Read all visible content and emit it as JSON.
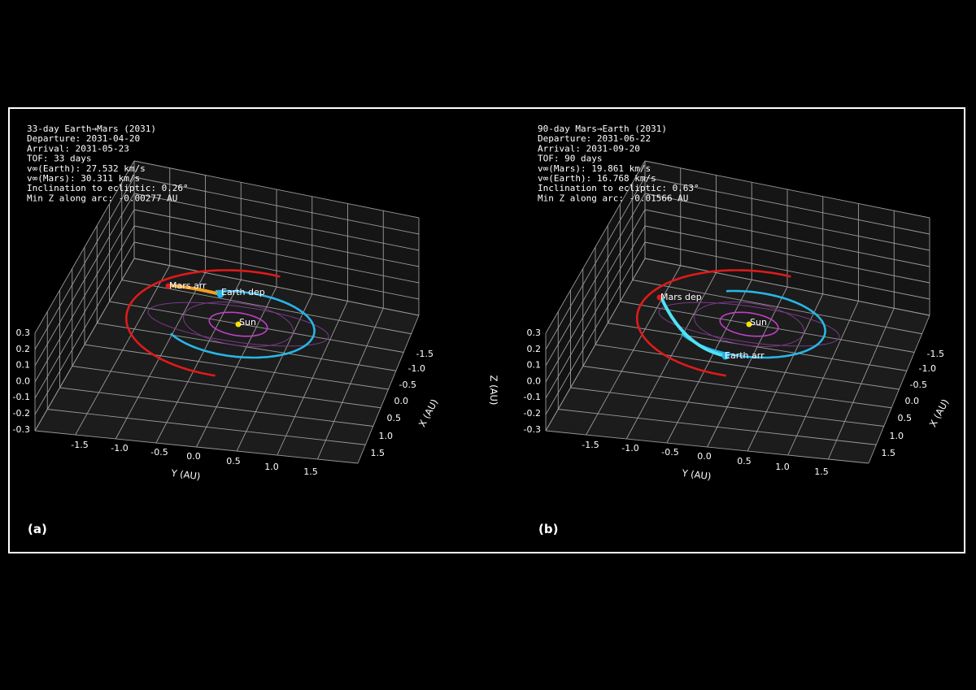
{
  "colors": {
    "background": "#000000",
    "grid": "#9a9a9a",
    "floor": "#1c1c1c",
    "earth_orbit": "#29b6e6",
    "mars_orbit": "#e01a1a",
    "inner_orbit": "#c23fc8",
    "faint_orbit": "#7a3a86",
    "transfer_out": "#f0a020",
    "transfer_back": "#4fe3f5",
    "sun": "#f5e20a",
    "frame": "#ffffff"
  },
  "chart_data": [
    {
      "type": "3d-line",
      "panel_label": "(a)",
      "info_lines": [
        "33-day Earth→Mars (2031)",
        "Departure: 2031-04-20",
        "Arrival:   2031-05-23",
        "TOF: 33 days",
        "v∞(Earth):  27.532 km/s",
        "v∞(Mars):  30.311 km/s",
        "Inclination to ecliptic:  0.26°",
        "Min Z along arc: -0.00277 AU"
      ],
      "xlabel": "X (AU)",
      "ylabel": "Y (AU)",
      "zlabel": "Z (AU)",
      "x_ticks": [
        "-1.5",
        "-1.0",
        "-0.5",
        "0.0",
        "0.5",
        "1.0",
        "1.5"
      ],
      "y_ticks": [
        "-1.5",
        "-1.0",
        "-0.5",
        "0.0",
        "0.5",
        "1.0",
        "1.5"
      ],
      "z_ticks": [
        "0.3",
        "0.2",
        "0.1",
        "0.0",
        "-0.1",
        "-0.2",
        "-0.3"
      ],
      "xlim": [
        -1.8,
        1.8
      ],
      "ylim": [
        -1.8,
        1.8
      ],
      "zlim": [
        -0.3,
        0.3
      ],
      "grid": true,
      "series": [
        {
          "name": "Earth dep",
          "kind": "marker",
          "x": 0.0,
          "y": -1.0,
          "z": 0.0
        },
        {
          "name": "Mars arr",
          "kind": "marker",
          "x": -0.55,
          "y": -1.45,
          "z": 0.0
        },
        {
          "name": "Sun",
          "kind": "marker",
          "x": 0.0,
          "y": 0.0,
          "z": 0.0
        }
      ]
    },
    {
      "type": "3d-line",
      "panel_label": "(b)",
      "info_lines": [
        "90-day Mars→Earth (2031)",
        "Departure: 2031-06-22",
        "Arrival:   2031-09-20",
        "TOF: 90 days",
        "v∞(Mars):  19.861 km/s",
        "v∞(Earth):  16.768 km/s",
        "Inclination to ecliptic:  0.63°",
        "Min Z along arc: -0.01566 AU"
      ],
      "xlabel": "X (AU)",
      "ylabel": "Y (AU)",
      "zlabel": "Z (AU)",
      "x_ticks": [
        "-1.5",
        "-1.0",
        "-0.5",
        "0.0",
        "0.5",
        "1.0",
        "1.5"
      ],
      "y_ticks": [
        "-1.5",
        "-1.0",
        "-0.5",
        "0.0",
        "0.5",
        "1.0",
        "1.5"
      ],
      "z_ticks": [
        "0.3",
        "0.2",
        "0.1",
        "0.0",
        "-0.1",
        "-0.2",
        "-0.3"
      ],
      "xlim": [
        -1.8,
        1.8
      ],
      "ylim": [
        -1.8,
        1.8
      ],
      "zlim": [
        -0.3,
        0.3
      ],
      "grid": true,
      "series": [
        {
          "name": "Mars dep",
          "kind": "marker",
          "x": -0.9,
          "y": -1.3,
          "z": 0.0
        },
        {
          "name": "Earth arr",
          "kind": "marker",
          "x": 0.5,
          "y": -0.3,
          "z": 0.0
        },
        {
          "name": "Sun",
          "kind": "marker",
          "x": 0.0,
          "y": 0.0,
          "z": 0.0
        }
      ]
    }
  ]
}
